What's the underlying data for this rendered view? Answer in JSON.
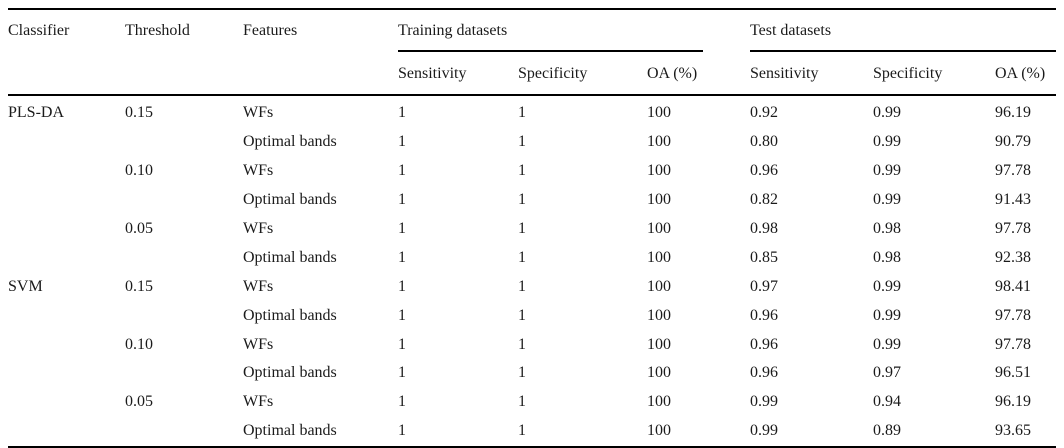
{
  "table": {
    "columns": {
      "classifier": "Classifier",
      "threshold": "Threshold",
      "features": "Features"
    },
    "groups": {
      "training": "Training datasets",
      "test": "Test datasets"
    },
    "subcolumns": {
      "sensitivity": "Sensitivity",
      "specificity": "Specificity",
      "oa": "OA (%)"
    },
    "rows": [
      {
        "classifier": "PLS-DA",
        "threshold": "0.15",
        "features": "WFs",
        "train_sensitivity": "1",
        "train_specificity": "1",
        "train_oa": "100",
        "test_sensitivity": "0.92",
        "test_specificity": "0.99",
        "test_oa": "96.19"
      },
      {
        "classifier": "",
        "threshold": "",
        "features": "Optimal bands",
        "train_sensitivity": "1",
        "train_specificity": "1",
        "train_oa": "100",
        "test_sensitivity": "0.80",
        "test_specificity": "0.99",
        "test_oa": "90.79"
      },
      {
        "classifier": "",
        "threshold": "0.10",
        "features": "WFs",
        "train_sensitivity": "1",
        "train_specificity": "1",
        "train_oa": "100",
        "test_sensitivity": "0.96",
        "test_specificity": "0.99",
        "test_oa": "97.78"
      },
      {
        "classifier": "",
        "threshold": "",
        "features": "Optimal bands",
        "train_sensitivity": "1",
        "train_specificity": "1",
        "train_oa": "100",
        "test_sensitivity": "0.82",
        "test_specificity": "0.99",
        "test_oa": "91.43"
      },
      {
        "classifier": "",
        "threshold": "0.05",
        "features": "WFs",
        "train_sensitivity": "1",
        "train_specificity": "1",
        "train_oa": "100",
        "test_sensitivity": "0.98",
        "test_specificity": "0.98",
        "test_oa": "97.78"
      },
      {
        "classifier": "",
        "threshold": "",
        "features": "Optimal bands",
        "train_sensitivity": "1",
        "train_specificity": "1",
        "train_oa": "100",
        "test_sensitivity": "0.85",
        "test_specificity": "0.98",
        "test_oa": "92.38"
      },
      {
        "classifier": "SVM",
        "threshold": "0.15",
        "features": "WFs",
        "train_sensitivity": "1",
        "train_specificity": "1",
        "train_oa": "100",
        "test_sensitivity": "0.97",
        "test_specificity": "0.99",
        "test_oa": "98.41"
      },
      {
        "classifier": "",
        "threshold": "",
        "features": "Optimal bands",
        "train_sensitivity": "1",
        "train_specificity": "1",
        "train_oa": "100",
        "test_sensitivity": "0.96",
        "test_specificity": "0.99",
        "test_oa": "97.78"
      },
      {
        "classifier": "",
        "threshold": "0.10",
        "features": "WFs",
        "train_sensitivity": "1",
        "train_specificity": "1",
        "train_oa": "100",
        "test_sensitivity": "0.96",
        "test_specificity": "0.99",
        "test_oa": "97.78"
      },
      {
        "classifier": "",
        "threshold": "",
        "features": "Optimal bands",
        "train_sensitivity": "1",
        "train_specificity": "1",
        "train_oa": "100",
        "test_sensitivity": "0.96",
        "test_specificity": "0.97",
        "test_oa": "96.51"
      },
      {
        "classifier": "",
        "threshold": "0.05",
        "features": "WFs",
        "train_sensitivity": "1",
        "train_specificity": "1",
        "train_oa": "100",
        "test_sensitivity": "0.99",
        "test_specificity": "0.94",
        "test_oa": "96.19"
      },
      {
        "classifier": "",
        "threshold": "",
        "features": "Optimal bands",
        "train_sensitivity": "1",
        "train_specificity": "1",
        "train_oa": "100",
        "test_sensitivity": "0.99",
        "test_specificity": "0.89",
        "test_oa": "93.65"
      }
    ]
  },
  "colors": {
    "background": "#ffffff",
    "text": "#1a1a1a",
    "rule": "#000000"
  }
}
